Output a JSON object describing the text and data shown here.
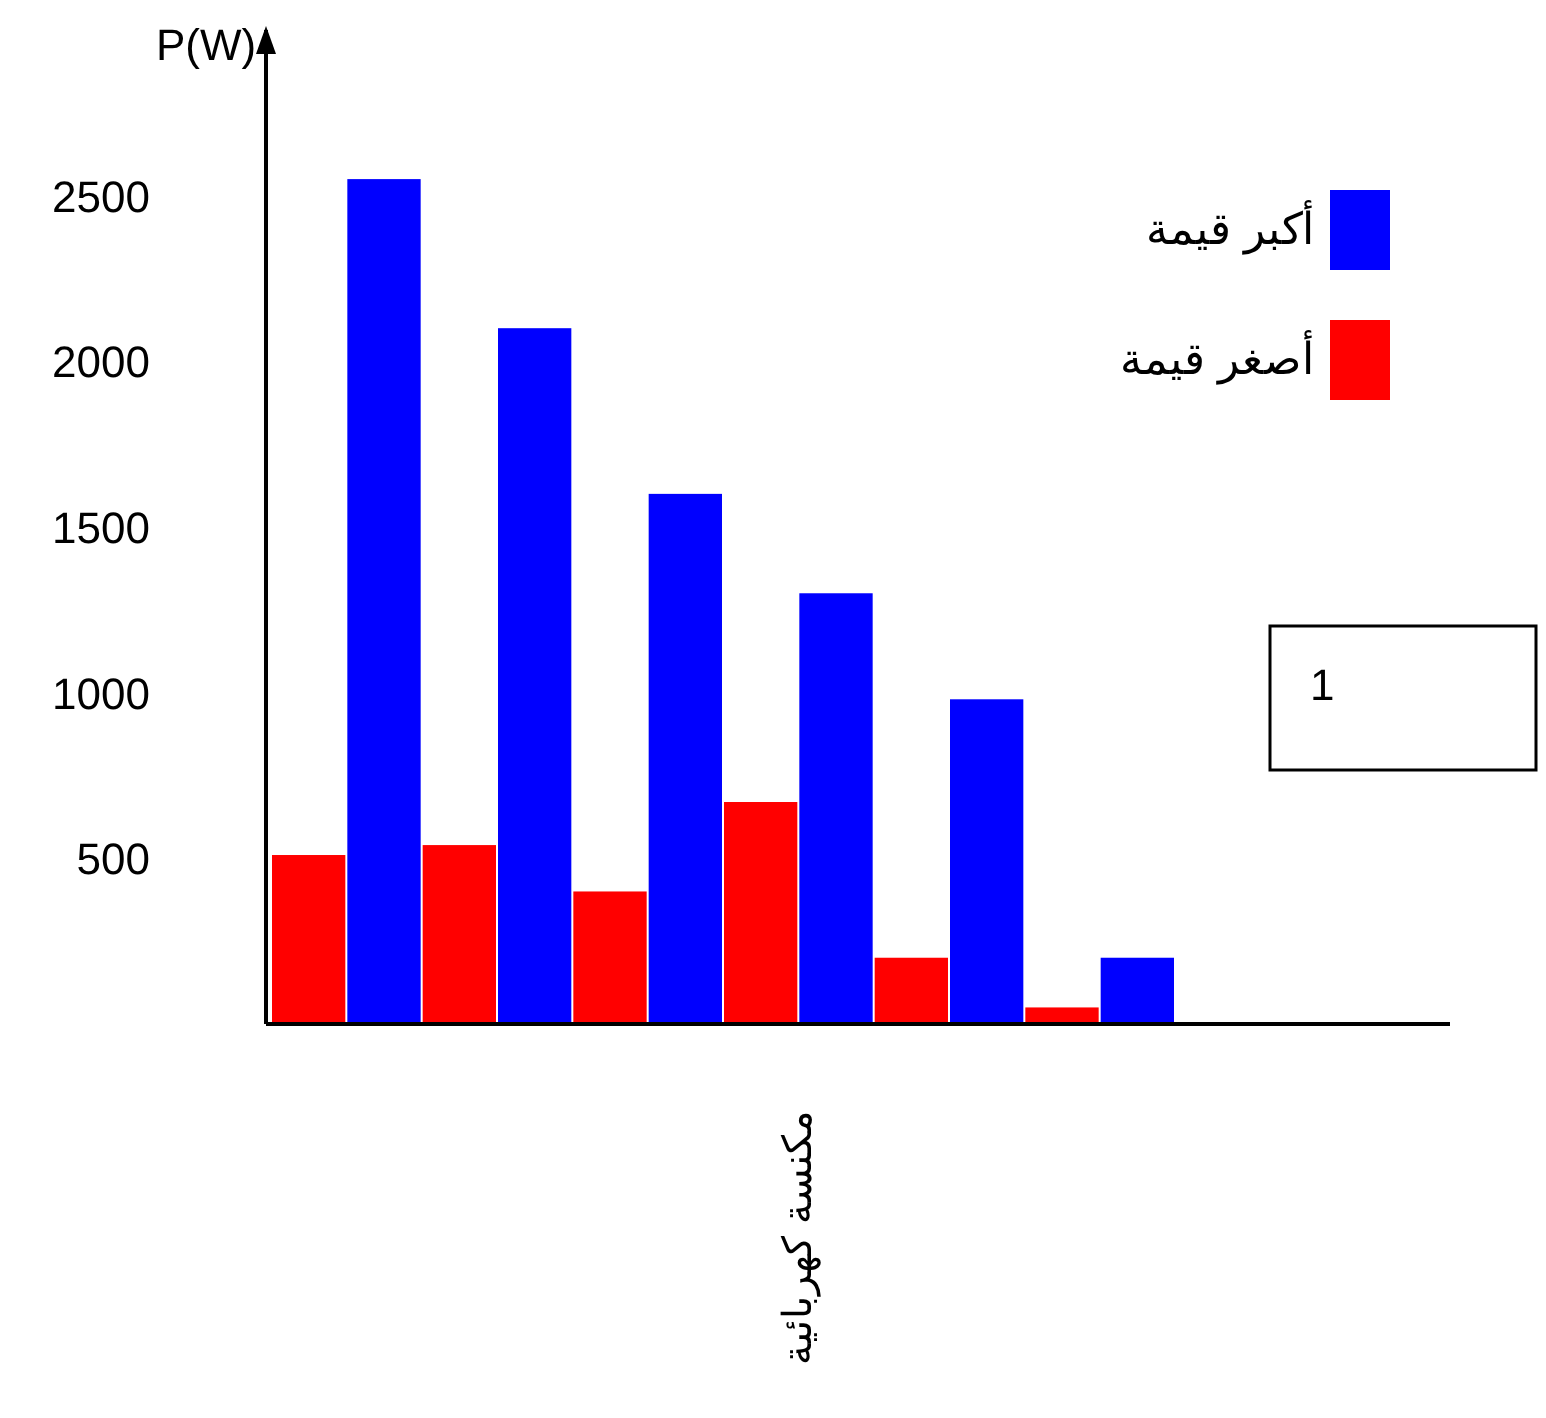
{
  "chart_data": {
    "type": "bar",
    "ylabel": "P(W)",
    "categories": [
      null,
      null,
      null,
      null,
      null,
      null
    ],
    "series": [
      {
        "name": "أصغر قيمة",
        "color": "#ff0000",
        "values": [
          510,
          540,
          400,
          670,
          200,
          50
        ]
      },
      {
        "name": "أكبر قيمة",
        "color": "#0000ff",
        "values": [
          2550,
          2100,
          1600,
          1300,
          980,
          200
        ]
      }
    ],
    "ylim": [
      0,
      3000
    ],
    "yticks": [
      500,
      1000,
      1500,
      2000,
      2500
    ],
    "legend": "top right",
    "annotations": [
      "مكنسة كهربائية",
      "1"
    ]
  }
}
